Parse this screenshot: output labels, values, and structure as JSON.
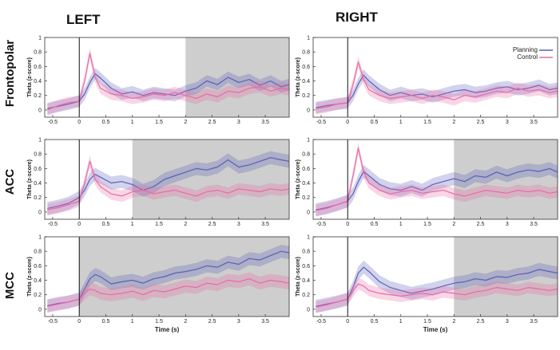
{
  "figure": {
    "column_titles": [
      "LEFT",
      "RIGHT"
    ],
    "row_titles": [
      "Frontopolar",
      "ACC",
      "MCC"
    ]
  },
  "colors": {
    "planning": "#5a5fb8",
    "control": "#e86aa6",
    "shade": "#c9c9c9"
  },
  "chart_data": [
    {
      "type": "line",
      "region": "Frontopolar",
      "hemisphere": "LEFT",
      "xlabel": "",
      "ylabel": "Theta (z-score)",
      "xlim": [
        -0.65,
        3.95
      ],
      "ylim": [
        -0.1,
        1.0
      ],
      "xticks": [
        -0.5,
        0,
        0.5,
        1,
        1.5,
        2,
        2.5,
        3,
        3.5
      ],
      "xtick_labels": [
        "-0.5",
        "0",
        "0.5",
        "1",
        "1.5",
        "2",
        "2.5",
        "3",
        "3.5"
      ],
      "yticks": [
        0,
        0.2,
        0.4,
        0.6,
        0.8,
        1
      ],
      "ytick_labels": [
        "0",
        "0.2",
        "0.4",
        "0.6",
        "0.8",
        "1"
      ],
      "event_line": 0,
      "shaded_region": [
        2,
        3.95
      ],
      "legend": null,
      "x": [
        -0.6,
        -0.4,
        -0.2,
        0,
        0.1,
        0.2,
        0.3,
        0.4,
        0.6,
        0.8,
        1.0,
        1.2,
        1.4,
        1.6,
        1.8,
        2.0,
        2.2,
        2.4,
        2.6,
        2.8,
        3.0,
        3.2,
        3.4,
        3.6,
        3.8,
        3.95
      ],
      "series": [
        {
          "name": "Planning",
          "values": [
            0.02,
            0.05,
            0.08,
            0.12,
            0.22,
            0.38,
            0.5,
            0.44,
            0.3,
            0.22,
            0.25,
            0.2,
            0.24,
            0.22,
            0.2,
            0.26,
            0.3,
            0.4,
            0.35,
            0.45,
            0.38,
            0.42,
            0.34,
            0.4,
            0.32,
            0.35
          ],
          "band": 0.08
        },
        {
          "name": "Control",
          "values": [
            0.0,
            0.06,
            0.1,
            0.12,
            0.4,
            0.78,
            0.45,
            0.3,
            0.22,
            0.2,
            0.16,
            0.18,
            0.22,
            0.2,
            0.24,
            0.2,
            0.16,
            0.22,
            0.18,
            0.26,
            0.24,
            0.3,
            0.32,
            0.26,
            0.3,
            0.28
          ],
          "band": 0.08
        }
      ]
    },
    {
      "type": "line",
      "region": "Frontopolar",
      "hemisphere": "RIGHT",
      "xlabel": "",
      "ylabel": "Theta (z-score)",
      "xlim": [
        -0.65,
        3.95
      ],
      "ylim": [
        -0.1,
        1.0
      ],
      "xticks": [
        -0.5,
        0,
        0.5,
        1,
        1.5,
        2,
        2.5,
        3,
        3.5
      ],
      "xtick_labels": [
        "-0.5",
        "0",
        "0.5",
        "1",
        "1.5",
        "2",
        "2.5",
        "3",
        "3.5"
      ],
      "yticks": [
        0,
        0.2,
        0.4,
        0.6,
        0.8,
        1
      ],
      "ytick_labels": [
        "0",
        "0.2",
        "0.4",
        "0.6",
        "0.8",
        "1"
      ],
      "event_line": 0,
      "shaded_region": null,
      "legend": "top-right",
      "x": [
        -0.6,
        -0.4,
        -0.2,
        0,
        0.1,
        0.2,
        0.3,
        0.4,
        0.6,
        0.8,
        1.0,
        1.2,
        1.4,
        1.6,
        1.8,
        2.0,
        2.2,
        2.4,
        2.6,
        2.8,
        3.0,
        3.2,
        3.4,
        3.6,
        3.8,
        3.95
      ],
      "series": [
        {
          "name": "Planning",
          "values": [
            0.03,
            0.06,
            0.08,
            0.1,
            0.2,
            0.36,
            0.48,
            0.4,
            0.28,
            0.2,
            0.24,
            0.2,
            0.22,
            0.18,
            0.22,
            0.26,
            0.28,
            0.24,
            0.26,
            0.3,
            0.32,
            0.28,
            0.3,
            0.34,
            0.28,
            0.3
          ],
          "band": 0.08
        },
        {
          "name": "Control",
          "values": [
            0.02,
            0.04,
            0.08,
            0.1,
            0.35,
            0.66,
            0.42,
            0.28,
            0.2,
            0.16,
            0.18,
            0.2,
            0.16,
            0.2,
            0.18,
            0.14,
            0.2,
            0.18,
            0.22,
            0.26,
            0.24,
            0.3,
            0.26,
            0.28,
            0.24,
            0.26
          ],
          "band": 0.08
        }
      ]
    },
    {
      "type": "line",
      "region": "ACC",
      "hemisphere": "LEFT",
      "xlabel": "",
      "ylabel": "Theta (z-score)",
      "xlim": [
        -0.65,
        3.95
      ],
      "ylim": [
        -0.1,
        1.0
      ],
      "xticks": [
        -0.5,
        0,
        0.5,
        1,
        1.5,
        2,
        2.5,
        3,
        3.5
      ],
      "xtick_labels": [
        "-0.5",
        "0",
        "0.5",
        "1",
        "1.5",
        "2",
        "2.5",
        "3",
        "3.5"
      ],
      "yticks": [
        0,
        0.2,
        0.4,
        0.6,
        0.8,
        1
      ],
      "ytick_labels": [
        "0",
        "0.2",
        "0.4",
        "0.6",
        "0.8",
        "1"
      ],
      "event_line": 0,
      "shaded_region": [
        1,
        3.95
      ],
      "legend": null,
      "x": [
        -0.6,
        -0.4,
        -0.2,
        0,
        0.1,
        0.2,
        0.3,
        0.4,
        0.6,
        0.8,
        1.0,
        1.2,
        1.4,
        1.6,
        1.8,
        2.0,
        2.2,
        2.4,
        2.6,
        2.8,
        3.0,
        3.2,
        3.4,
        3.6,
        3.8,
        3.95
      ],
      "series": [
        {
          "name": "Planning",
          "values": [
            0.05,
            0.08,
            0.12,
            0.2,
            0.3,
            0.45,
            0.52,
            0.48,
            0.4,
            0.42,
            0.38,
            0.3,
            0.35,
            0.45,
            0.5,
            0.55,
            0.6,
            0.58,
            0.62,
            0.72,
            0.62,
            0.65,
            0.7,
            0.75,
            0.72,
            0.7
          ],
          "band": 0.09
        },
        {
          "name": "Control",
          "values": [
            0.03,
            0.06,
            0.1,
            0.15,
            0.4,
            0.7,
            0.45,
            0.35,
            0.25,
            0.22,
            0.28,
            0.3,
            0.25,
            0.28,
            0.3,
            0.26,
            0.22,
            0.28,
            0.3,
            0.26,
            0.32,
            0.3,
            0.28,
            0.32,
            0.3,
            0.32
          ],
          "band": 0.08
        }
      ]
    },
    {
      "type": "line",
      "region": "ACC",
      "hemisphere": "RIGHT",
      "xlabel": "",
      "ylabel": "Theta (z-score)",
      "xlim": [
        -0.65,
        3.95
      ],
      "ylim": [
        -0.1,
        1.0
      ],
      "xticks": [
        -0.5,
        0,
        0.5,
        1,
        1.5,
        2,
        2.5,
        3,
        3.5
      ],
      "xtick_labels": [
        "-0.5",
        "0",
        "0.5",
        "1",
        "1.5",
        "2",
        "2.5",
        "3",
        "3.5"
      ],
      "yticks": [
        0,
        0.2,
        0.4,
        0.6,
        0.8,
        1
      ],
      "ytick_labels": [
        "0",
        "0.2",
        "0.4",
        "0.6",
        "0.8",
        "1"
      ],
      "event_line": 0,
      "shaded_region": [
        2,
        3.95
      ],
      "legend": null,
      "x": [
        -0.6,
        -0.4,
        -0.2,
        0,
        0.1,
        0.2,
        0.3,
        0.4,
        0.6,
        0.8,
        1.0,
        1.2,
        1.4,
        1.6,
        1.8,
        2.0,
        2.2,
        2.4,
        2.6,
        2.8,
        3.0,
        3.2,
        3.4,
        3.6,
        3.8,
        3.95
      ],
      "series": [
        {
          "name": "Planning",
          "values": [
            0.03,
            0.06,
            0.1,
            0.15,
            0.25,
            0.42,
            0.56,
            0.5,
            0.38,
            0.32,
            0.3,
            0.35,
            0.3,
            0.38,
            0.42,
            0.46,
            0.42,
            0.5,
            0.48,
            0.55,
            0.5,
            0.55,
            0.58,
            0.56,
            0.6,
            0.55
          ],
          "band": 0.09
        },
        {
          "name": "Control",
          "values": [
            0.02,
            0.05,
            0.1,
            0.15,
            0.5,
            0.88,
            0.55,
            0.4,
            0.3,
            0.25,
            0.28,
            0.3,
            0.26,
            0.28,
            0.3,
            0.25,
            0.22,
            0.26,
            0.3,
            0.28,
            0.26,
            0.3,
            0.28,
            0.3,
            0.26,
            0.28
          ],
          "band": 0.08
        }
      ]
    },
    {
      "type": "line",
      "region": "MCC",
      "hemisphere": "LEFT",
      "xlabel": "Time (s)",
      "ylabel": "Theta (z-score)",
      "xlim": [
        -0.65,
        3.95
      ],
      "ylim": [
        -0.1,
        1.0
      ],
      "xticks": [
        -0.5,
        0,
        0.5,
        1,
        1.5,
        2,
        2.5,
        3,
        3.5
      ],
      "xtick_labels": [
        "-0.5",
        "0",
        "0.5",
        "1",
        "1.5",
        "2",
        "2.5",
        "3",
        "3.5"
      ],
      "yticks": [
        0,
        0.2,
        0.4,
        0.6,
        0.8,
        1
      ],
      "ytick_labels": [
        "0",
        "0.2",
        "0.4",
        "0.6",
        "0.8",
        "1"
      ],
      "event_line": 0,
      "shaded_region": [
        0,
        3.95
      ],
      "legend": null,
      "x": [
        -0.6,
        -0.4,
        -0.2,
        0,
        0.1,
        0.2,
        0.3,
        0.4,
        0.6,
        0.8,
        1.0,
        1.2,
        1.4,
        1.6,
        1.8,
        2.0,
        2.2,
        2.4,
        2.6,
        2.8,
        3.0,
        3.2,
        3.4,
        3.6,
        3.8,
        3.95
      ],
      "series": [
        {
          "name": "Planning",
          "values": [
            0.05,
            0.08,
            0.1,
            0.14,
            0.28,
            0.42,
            0.48,
            0.45,
            0.35,
            0.38,
            0.4,
            0.36,
            0.42,
            0.45,
            0.5,
            0.52,
            0.55,
            0.6,
            0.58,
            0.65,
            0.62,
            0.7,
            0.68,
            0.74,
            0.8,
            0.78
          ],
          "band": 0.09
        },
        {
          "name": "Control",
          "values": [
            0.04,
            0.07,
            0.1,
            0.14,
            0.22,
            0.28,
            0.26,
            0.22,
            0.2,
            0.22,
            0.25,
            0.2,
            0.26,
            0.24,
            0.28,
            0.32,
            0.3,
            0.36,
            0.34,
            0.4,
            0.38,
            0.42,
            0.36,
            0.4,
            0.38,
            0.36
          ],
          "band": 0.09
        }
      ]
    },
    {
      "type": "line",
      "region": "MCC",
      "hemisphere": "RIGHT",
      "xlabel": "Time (s)",
      "ylabel": "Theta (z-score)",
      "xlim": [
        -0.65,
        3.95
      ],
      "ylim": [
        -0.1,
        1.0
      ],
      "xticks": [
        -0.5,
        0,
        0.5,
        1,
        1.5,
        2,
        2.5,
        3,
        3.5
      ],
      "xtick_labels": [
        "-0.5",
        "0",
        "0.5",
        "1",
        "1.5",
        "2",
        "2.5",
        "3",
        "3.5"
      ],
      "yticks": [
        0,
        0.2,
        0.4,
        0.6,
        0.8,
        1
      ],
      "ytick_labels": [
        "0",
        "0.2",
        "0.4",
        "0.6",
        "0.8",
        "1"
      ],
      "event_line": 0,
      "shaded_region": [
        2,
        3.95
      ],
      "legend": null,
      "x": [
        -0.6,
        -0.4,
        -0.2,
        0,
        0.1,
        0.2,
        0.3,
        0.4,
        0.6,
        0.8,
        1.0,
        1.2,
        1.4,
        1.6,
        1.8,
        2.0,
        2.2,
        2.4,
        2.6,
        2.8,
        3.0,
        3.2,
        3.4,
        3.6,
        3.8,
        3.95
      ],
      "series": [
        {
          "name": "Planning",
          "values": [
            0.04,
            0.07,
            0.1,
            0.14,
            0.3,
            0.5,
            0.58,
            0.52,
            0.38,
            0.3,
            0.26,
            0.22,
            0.25,
            0.28,
            0.32,
            0.36,
            0.38,
            0.42,
            0.4,
            0.45,
            0.44,
            0.48,
            0.5,
            0.55,
            0.52,
            0.5
          ],
          "band": 0.09
        },
        {
          "name": "Control",
          "values": [
            0.03,
            0.06,
            0.1,
            0.14,
            0.25,
            0.35,
            0.32,
            0.26,
            0.22,
            0.2,
            0.18,
            0.2,
            0.22,
            0.2,
            0.24,
            0.22,
            0.2,
            0.24,
            0.26,
            0.3,
            0.28,
            0.26,
            0.3,
            0.28,
            0.26,
            0.28
          ],
          "band": 0.08
        }
      ]
    }
  ]
}
